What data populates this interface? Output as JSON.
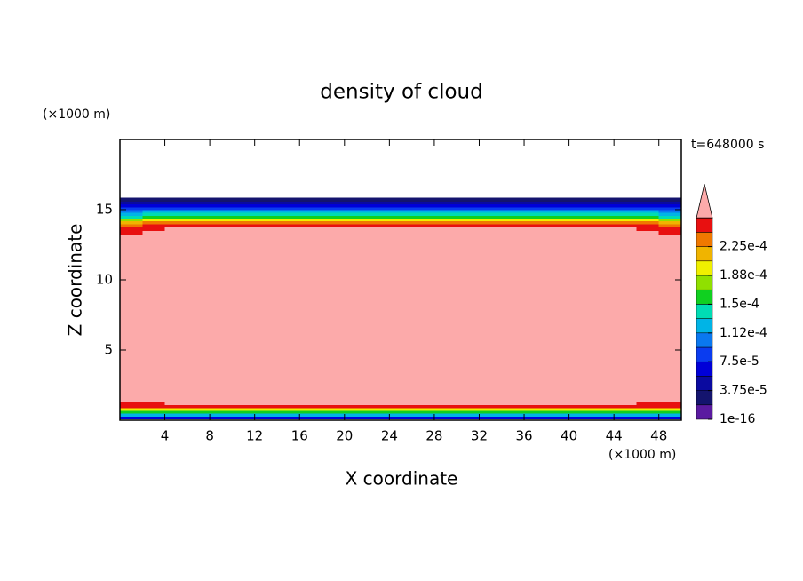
{
  "chart_data": {
    "type": "contour",
    "title": "density of cloud",
    "x_label": "X coordinate",
    "y_label": "Z coordinate",
    "x_unit": "(×1000 m)",
    "y_unit": "(×1000 m)",
    "time_label": "t=648000 s",
    "xlim": [
      0,
      50
    ],
    "ylim": [
      0,
      20
    ],
    "xticks": [
      4,
      8,
      12,
      16,
      20,
      24,
      28,
      32,
      36,
      40,
      44,
      48
    ],
    "yticks": [
      5,
      10,
      15
    ],
    "x_edges": [
      0,
      2,
      4,
      8,
      42,
      46,
      48,
      50
    ],
    "z_edges": [
      0.1,
      0.3,
      0.5,
      0.7,
      0.9,
      1.1,
      1.3,
      13.2,
      13.5,
      13.8,
      14.0,
      14.2,
      14.4,
      14.6,
      14.8,
      15.0,
      15.2,
      15.4,
      15.6,
      15.85,
      20
    ],
    "values": [
      [
        6.5e-05,
        6.5e-05,
        6.5e-05,
        6.5e-05,
        6.5e-05,
        6.5e-05,
        6.5e-05
      ],
      [
        0.00012,
        0.00012,
        0.00012,
        0.00012,
        0.00012,
        0.00012,
        0.00012
      ],
      [
        0.00016,
        0.00016,
        0.00016,
        0.00016,
        0.00016,
        0.00016,
        0.00016
      ],
      [
        0.0002,
        0.0002,
        0.0002,
        0.0002,
        0.0002,
        0.0002,
        0.0002
      ],
      [
        0.00025,
        0.00025,
        0.00025,
        0.00025,
        0.00025,
        0.00025,
        0.00025
      ],
      [
        0.00025,
        0.00025,
        0.00028,
        0.00028,
        0.00028,
        0.00025,
        0.00025
      ],
      [
        0.00028,
        0.00028,
        0.00028,
        0.00028,
        0.00028,
        0.00028,
        0.00028
      ],
      [
        0.00025,
        0.00028,
        0.00028,
        0.00028,
        0.00028,
        0.00028,
        0.00025
      ],
      [
        0.00025,
        0.00025,
        0.00028,
        0.00028,
        0.00028,
        0.00025,
        0.00025
      ],
      [
        0.00023,
        0.00025,
        0.00025,
        0.00025,
        0.00025,
        0.00025,
        0.00023
      ],
      [
        0.00021,
        0.00023,
        0.00023,
        0.00023,
        0.00023,
        0.00023,
        0.00021
      ],
      [
        0.000175,
        0.000195,
        0.000195,
        0.000195,
        0.000195,
        0.000195,
        0.000175
      ],
      [
        0.00014,
        0.00016,
        0.00016,
        0.00016,
        0.00016,
        0.00016,
        0.00014
      ],
      [
        0.00012,
        0.000135,
        0.000135,
        0.000135,
        0.000135,
        0.000135,
        0.00012
      ],
      [
        0.0001,
        0.00012,
        0.00012,
        0.00012,
        0.00012,
        0.00012,
        0.0001
      ],
      [
        8e-05,
        8e-05,
        8e-05,
        8e-05,
        8e-05,
        8e-05,
        8e-05
      ],
      [
        6.5e-05,
        6.5e-05,
        6.5e-05,
        6.5e-05,
        6.5e-05,
        6.5e-05,
        6.5e-05
      ],
      [
        4.5e-05,
        4.5e-05,
        4.5e-05,
        4.5e-05,
        4.5e-05,
        4.5e-05,
        4.5e-05
      ],
      [
        2.5e-05,
        2.5e-05,
        2.5e-05,
        2.5e-05,
        2.5e-05,
        2.5e-05,
        2.5e-05
      ],
      [
        null,
        null,
        null,
        null,
        null,
        null,
        null
      ]
    ],
    "levels": [
      1e-16,
      1.875e-05,
      3.75e-05,
      5.625e-05,
      7.5e-05,
      9.375e-05,
      0.0001125,
      0.00013125,
      0.00015,
      0.00016875,
      0.0001875,
      0.00020625,
      0.000225,
      0.00024375,
      0.0002625
    ],
    "colors": [
      "#5a1aa0",
      "#14146e",
      "#0a0aa0",
      "#0000d8",
      "#0a3cf0",
      "#0a78f0",
      "#00b4e6",
      "#00dcb4",
      "#10d020",
      "#90e000",
      "#f0f000",
      "#f0b400",
      "#f07800",
      "#e81010"
    ],
    "over_color": "#fcaaaa",
    "colorbar_ticks": [
      {
        "value": 1e-16,
        "label": "1e-16"
      },
      {
        "value": 3.75e-05,
        "label": "3.75e-5"
      },
      {
        "value": 7.5e-05,
        "label": "7.5e-5"
      },
      {
        "value": 0.0001125,
        "label": "1.12e-4"
      },
      {
        "value": 0.00015,
        "label": "1.5e-4"
      },
      {
        "value": 0.0001875,
        "label": "1.88e-4"
      },
      {
        "value": 0.000225,
        "label": "2.25e-4"
      }
    ]
  }
}
